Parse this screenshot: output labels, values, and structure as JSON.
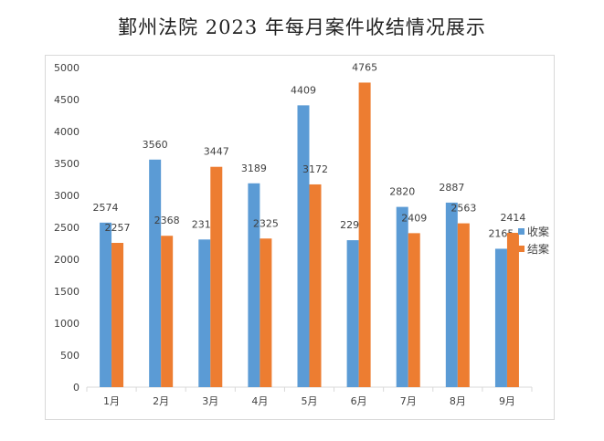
{
  "chart_data": {
    "type": "bar",
    "title": "鄞州法院 2023 年每月案件收结情况展示",
    "categories": [
      "1月",
      "2月",
      "3月",
      "4月",
      "5月",
      "6月",
      "7月",
      "8月",
      "9月"
    ],
    "series": [
      {
        "name": "收案",
        "color": "#5b9bd5",
        "values": [
          2574,
          3560,
          2310,
          3189,
          4409,
          2299,
          2820,
          2887,
          2165
        ]
      },
      {
        "name": "结案",
        "color": "#ed7d31",
        "values": [
          2257,
          2368,
          3447,
          2325,
          3172,
          4765,
          2409,
          2563,
          2414
        ]
      }
    ],
    "ylim": [
      0,
      5000
    ],
    "yticks": [
      0,
      500,
      1000,
      1500,
      2000,
      2500,
      3000,
      3500,
      4000,
      4500,
      5000
    ],
    "grid": false,
    "legend": "right",
    "xlabel": "",
    "ylabel": ""
  }
}
